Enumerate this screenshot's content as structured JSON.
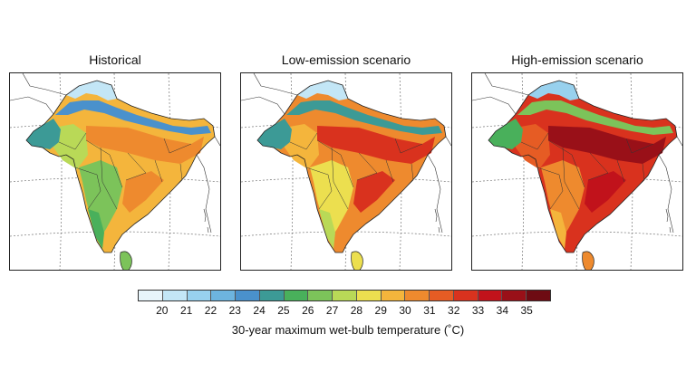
{
  "panels": [
    {
      "title": "Historical",
      "level": 0
    },
    {
      "title": "Low-emission scenario",
      "level": 1
    },
    {
      "title": "High-emission scenario",
      "level": 2
    }
  ],
  "colorbar": {
    "label": "30-year maximum wet-bulb temperature (˚C)",
    "ticks": [
      "20",
      "21",
      "22",
      "23",
      "24",
      "25",
      "26",
      "27",
      "28",
      "29",
      "30",
      "31",
      "32",
      "33",
      "34",
      "35"
    ],
    "colors": [
      "#e8f5fb",
      "#c3e6f6",
      "#98d1ee",
      "#6db4df",
      "#4a91cc",
      "#3c9a96",
      "#49b05b",
      "#7cc35a",
      "#b9d957",
      "#ecdf4f",
      "#f4b53c",
      "#ee8a2e",
      "#e65c24",
      "#d9321e",
      "#c1121b",
      "#991018",
      "#6e0b13"
    ]
  }
}
